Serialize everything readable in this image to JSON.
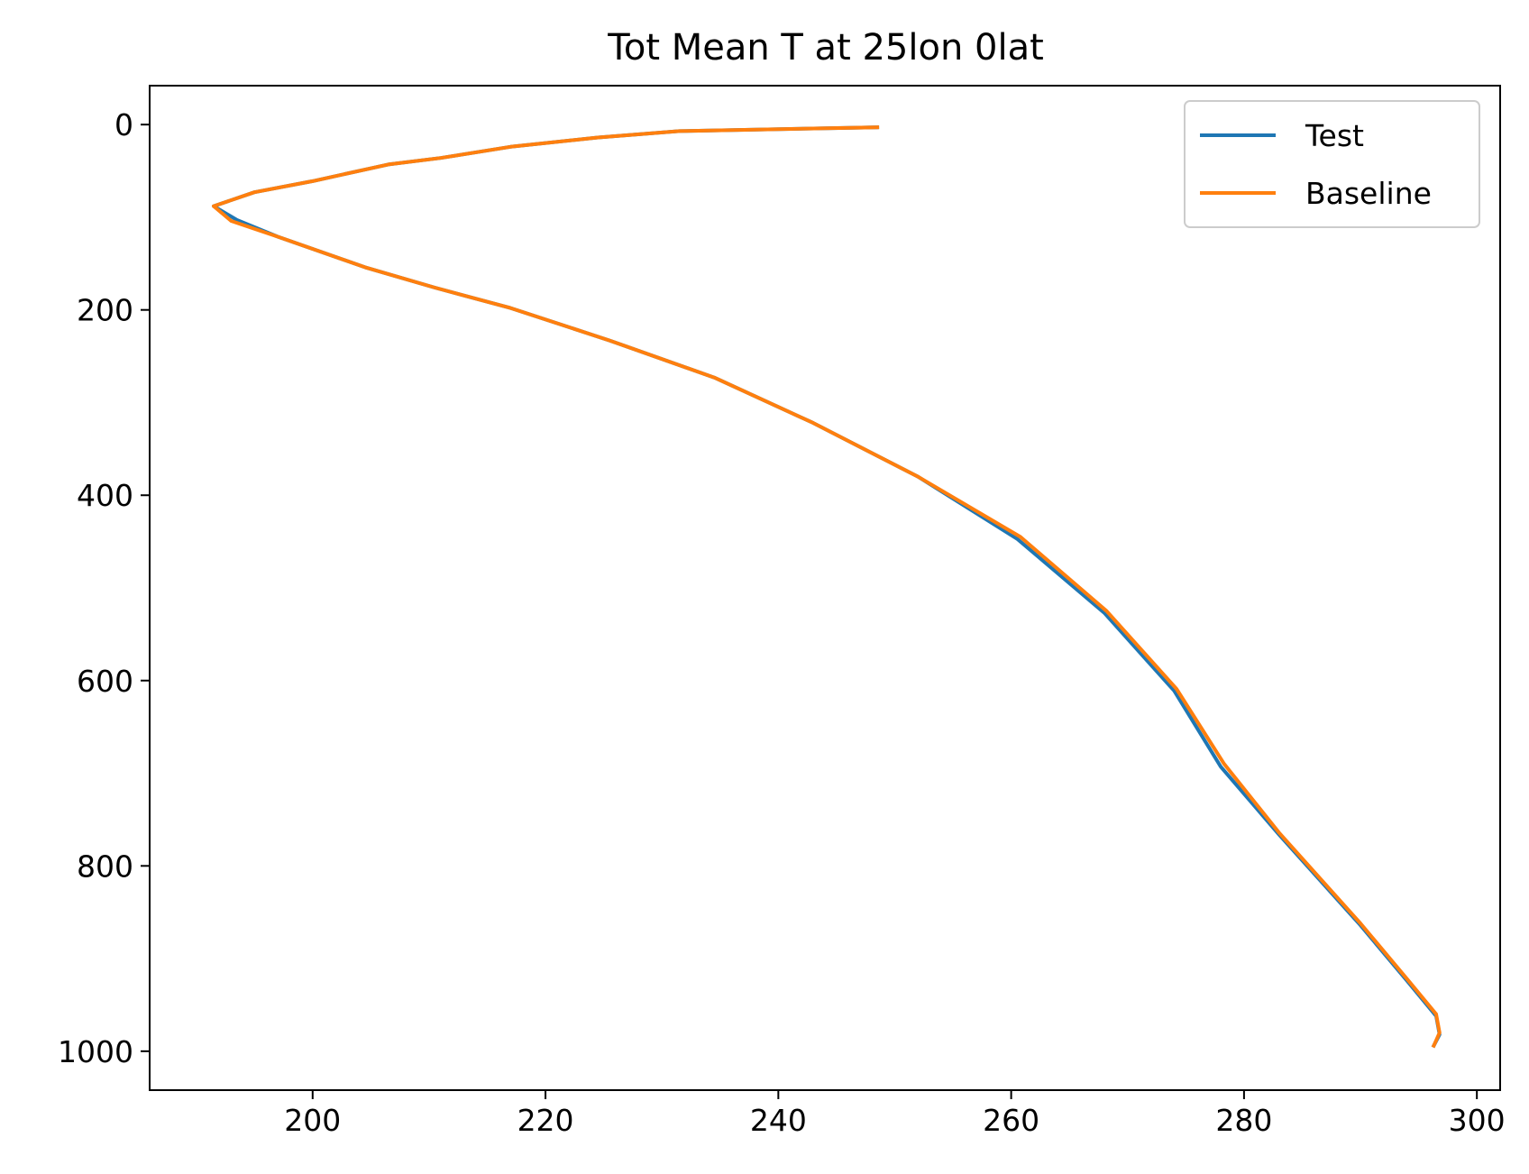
{
  "chart_data": {
    "type": "line",
    "title": "Tot Mean T at 25lon 0lat",
    "xlabel": "",
    "ylabel": "",
    "xlim": [
      186,
      302
    ],
    "ylim": [
      1042,
      -42
    ],
    "y_inverted": true,
    "grid": false,
    "legend_placement": "top-right",
    "xticks": [
      200,
      220,
      240,
      260,
      280,
      300
    ],
    "yticks": [
      0,
      200,
      400,
      600,
      800,
      1000
    ],
    "series": [
      {
        "name": "Test",
        "color": "#1f77b4",
        "x": [
          248.5,
          231.5,
          224.5,
          217.0,
          211.0,
          206.5,
          200.0,
          195.0,
          191.5,
          193.5,
          197.0,
          204.5,
          210.5,
          217.0,
          225.5,
          234.5,
          243.0,
          252.0,
          260.5,
          268.0,
          274.0,
          278.0,
          283.0,
          290.0,
          294.0,
          296.5,
          296.8,
          296.3
        ],
        "y": [
          3,
          7,
          14,
          24,
          36,
          43,
          61,
          73,
          88,
          103,
          121,
          154,
          176,
          198,
          233,
          273,
          322,
          380,
          447,
          527,
          611,
          693,
          766,
          864,
          924,
          962,
          982,
          994
        ]
      },
      {
        "name": "Baseline",
        "color": "#ff7f0e",
        "x": [
          248.5,
          231.5,
          224.5,
          217.0,
          211.0,
          206.5,
          200.0,
          195.0,
          191.5,
          193.0,
          197.0,
          204.5,
          210.5,
          217.0,
          225.5,
          234.5,
          243.0,
          252.0,
          260.8,
          268.2,
          274.2,
          278.3,
          283.0,
          290.0,
          294.0,
          296.5,
          296.8,
          296.3
        ],
        "y": [
          3,
          7,
          14,
          24,
          36,
          43,
          61,
          73,
          88,
          104,
          121,
          154,
          176,
          198,
          233,
          273,
          322,
          380,
          445,
          525,
          609,
          690,
          764,
          862,
          922,
          960,
          980,
          994
        ]
      }
    ]
  }
}
